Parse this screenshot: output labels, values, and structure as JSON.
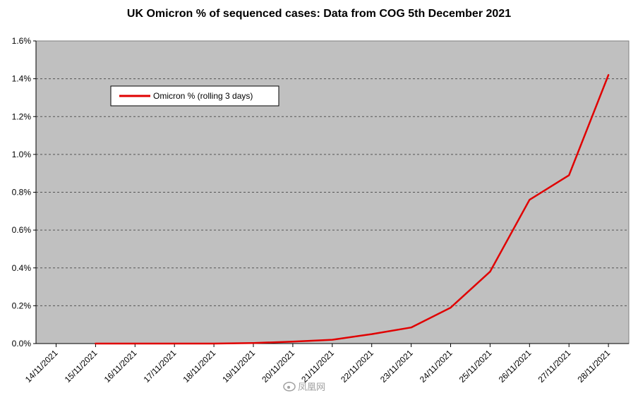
{
  "chart_data": {
    "type": "line",
    "title": "UK Omicron % of sequenced cases: Data from COG 5th December 2021",
    "xlabel": "",
    "ylabel": "",
    "categories": [
      "14/11/2021",
      "15/11/2021",
      "16/11/2021",
      "17/11/2021",
      "18/11/2021",
      "19/11/2021",
      "20/11/2021",
      "21/11/2021",
      "22/11/2021",
      "23/11/2021",
      "24/11/2021",
      "25/11/2021",
      "26/11/2021",
      "27/11/2021",
      "28/11/2021"
    ],
    "series": [
      {
        "name": "Omicron % (rolling 3 days)",
        "color": "#e00000",
        "values": [
          null,
          0.0,
          0.0,
          0.0,
          0.0,
          0.003,
          0.01,
          0.02,
          0.05,
          0.085,
          0.19,
          0.38,
          0.76,
          0.89,
          1.42
        ]
      }
    ],
    "ylim": [
      0,
      1.6
    ],
    "y_ticks": [
      "0.0%",
      "0.2%",
      "0.4%",
      "0.6%",
      "0.8%",
      "1.0%",
      "1.2%",
      "1.4%",
      "1.6%"
    ],
    "grid": true,
    "legend_position": "top-left",
    "plot_background": "#c0c0c0"
  },
  "watermark": {
    "text": "凤凰网"
  }
}
